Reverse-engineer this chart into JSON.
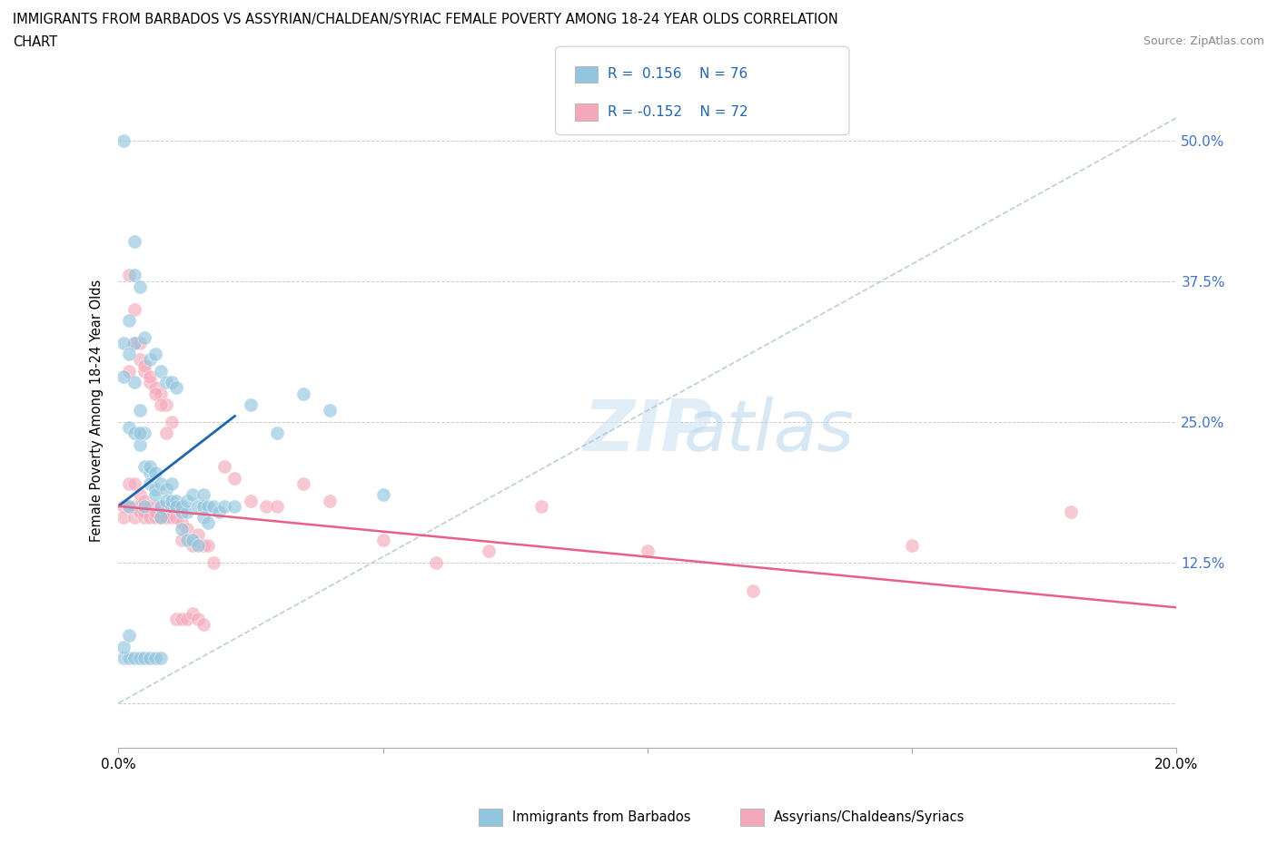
{
  "title_line1": "IMMIGRANTS FROM BARBADOS VS ASSYRIAN/CHALDEAN/SYRIAC FEMALE POVERTY AMONG 18-24 YEAR OLDS CORRELATION",
  "title_line2": "CHART",
  "source": "Source: ZipAtlas.com",
  "ylabel": "Female Poverty Among 18-24 Year Olds",
  "xlim": [
    0.0,
    0.2
  ],
  "ylim": [
    -0.04,
    0.56
  ],
  "xticks": [
    0.0,
    0.05,
    0.1,
    0.15,
    0.2
  ],
  "xtick_labels": [
    "0.0%",
    "",
    "",
    "",
    "20.0%"
  ],
  "ytick_positions": [
    0.0,
    0.125,
    0.25,
    0.375,
    0.5
  ],
  "ytick_labels": [
    "",
    "12.5%",
    "25.0%",
    "37.5%",
    "50.0%"
  ],
  "color_blue": "#92c5de",
  "color_pink": "#f4a9bb",
  "color_blue_line": "#2166ac",
  "color_pink_line": "#e8608a",
  "color_trend_gray": "#b0c4d8",
  "blue_trend_x": [
    0.0,
    0.022
  ],
  "blue_trend_y": [
    0.175,
    0.255
  ],
  "pink_trend_x": [
    0.0,
    0.2
  ],
  "pink_trend_y": [
    0.175,
    0.085
  ],
  "gray_trend_x": [
    0.0,
    0.2
  ],
  "gray_trend_y": [
    0.0,
    0.52
  ],
  "blue_scatter_x": [
    0.001,
    0.002,
    0.003,
    0.003,
    0.003,
    0.004,
    0.004,
    0.005,
    0.005,
    0.005,
    0.006,
    0.006,
    0.006,
    0.007,
    0.007,
    0.007,
    0.008,
    0.008,
    0.008,
    0.009,
    0.009,
    0.01,
    0.01,
    0.01,
    0.011,
    0.011,
    0.012,
    0.012,
    0.013,
    0.013,
    0.014,
    0.015,
    0.016,
    0.016,
    0.017,
    0.018,
    0.019,
    0.02,
    0.022,
    0.025,
    0.002,
    0.003,
    0.004,
    0.005,
    0.006,
    0.007,
    0.008,
    0.009,
    0.01,
    0.011,
    0.012,
    0.013,
    0.014,
    0.015,
    0.016,
    0.017,
    0.001,
    0.002,
    0.003,
    0.004,
    0.005,
    0.006,
    0.007,
    0.008,
    0.001,
    0.002,
    0.03,
    0.035,
    0.04,
    0.05,
    0.001,
    0.002,
    0.003,
    0.004,
    0.001,
    0.002
  ],
  "blue_scatter_y": [
    0.5,
    0.175,
    0.38,
    0.32,
    0.285,
    0.26,
    0.23,
    0.24,
    0.21,
    0.175,
    0.205,
    0.195,
    0.21,
    0.205,
    0.19,
    0.185,
    0.195,
    0.175,
    0.165,
    0.19,
    0.18,
    0.195,
    0.175,
    0.18,
    0.18,
    0.175,
    0.17,
    0.175,
    0.17,
    0.18,
    0.185,
    0.175,
    0.175,
    0.185,
    0.175,
    0.175,
    0.17,
    0.175,
    0.175,
    0.265,
    0.34,
    0.41,
    0.37,
    0.325,
    0.305,
    0.31,
    0.295,
    0.285,
    0.285,
    0.28,
    0.155,
    0.145,
    0.145,
    0.14,
    0.165,
    0.16,
    0.04,
    0.04,
    0.04,
    0.04,
    0.04,
    0.04,
    0.04,
    0.04,
    0.05,
    0.06,
    0.24,
    0.275,
    0.26,
    0.185,
    0.29,
    0.245,
    0.24,
    0.24,
    0.32,
    0.31
  ],
  "pink_scatter_x": [
    0.001,
    0.001,
    0.002,
    0.002,
    0.003,
    0.003,
    0.003,
    0.004,
    0.004,
    0.004,
    0.005,
    0.005,
    0.005,
    0.006,
    0.006,
    0.007,
    0.007,
    0.007,
    0.008,
    0.008,
    0.009,
    0.009,
    0.01,
    0.01,
    0.011,
    0.012,
    0.012,
    0.013,
    0.014,
    0.015,
    0.016,
    0.017,
    0.018,
    0.02,
    0.022,
    0.025,
    0.028,
    0.03,
    0.035,
    0.04,
    0.05,
    0.06,
    0.07,
    0.08,
    0.1,
    0.12,
    0.15,
    0.18,
    0.002,
    0.003,
    0.004,
    0.005,
    0.006,
    0.007,
    0.008,
    0.009,
    0.01,
    0.011,
    0.012,
    0.013,
    0.014,
    0.015,
    0.016,
    0.002,
    0.003,
    0.004,
    0.005,
    0.006,
    0.007,
    0.008,
    0.009
  ],
  "pink_scatter_y": [
    0.175,
    0.165,
    0.195,
    0.175,
    0.195,
    0.175,
    0.165,
    0.185,
    0.175,
    0.17,
    0.18,
    0.165,
    0.17,
    0.175,
    0.165,
    0.175,
    0.165,
    0.17,
    0.165,
    0.175,
    0.17,
    0.165,
    0.175,
    0.165,
    0.165,
    0.145,
    0.16,
    0.155,
    0.14,
    0.15,
    0.14,
    0.14,
    0.125,
    0.21,
    0.2,
    0.18,
    0.175,
    0.175,
    0.195,
    0.18,
    0.145,
    0.125,
    0.135,
    0.175,
    0.135,
    0.1,
    0.14,
    0.17,
    0.295,
    0.32,
    0.305,
    0.295,
    0.285,
    0.28,
    0.275,
    0.265,
    0.25,
    0.075,
    0.075,
    0.075,
    0.08,
    0.075,
    0.07,
    0.38,
    0.35,
    0.32,
    0.3,
    0.29,
    0.275,
    0.265,
    0.24
  ]
}
